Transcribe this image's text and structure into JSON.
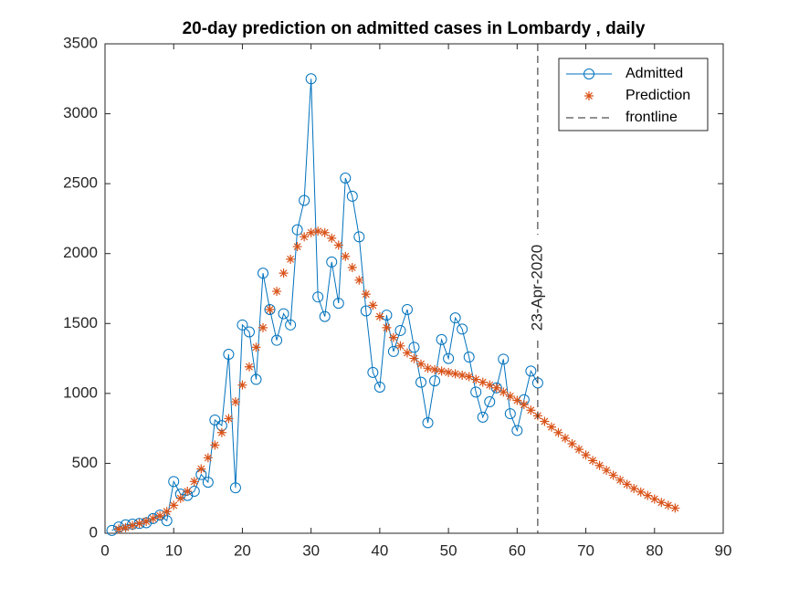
{
  "chart_data": {
    "type": "line",
    "title": "20-day prediction on admitted cases in Lombardy , daily",
    "xlim": [
      0,
      90
    ],
    "xticks": [
      0,
      10,
      20,
      30,
      40,
      50,
      60,
      70,
      80,
      90
    ],
    "ylim": [
      0,
      3500
    ],
    "yticks": [
      0,
      500,
      1000,
      1500,
      2000,
      2500,
      3000,
      3500
    ],
    "grid": false,
    "legend": "northeast",
    "series": [
      {
        "name": "Admitted",
        "color": "#0072BD",
        "marker": "o",
        "line": true,
        "x": [
          1,
          2,
          3,
          4,
          5,
          6,
          7,
          8,
          9,
          10,
          11,
          12,
          13,
          14,
          15,
          16,
          17,
          18,
          19,
          20,
          21,
          22,
          23,
          24,
          25,
          26,
          27,
          28,
          29,
          30,
          31,
          32,
          33,
          34,
          35,
          36,
          37,
          38,
          39,
          40,
          41,
          42,
          43,
          44,
          45,
          46,
          47,
          48,
          49,
          50,
          51,
          52,
          53,
          54,
          55,
          56,
          57,
          58,
          59,
          60,
          61,
          62,
          63
        ],
        "values": [
          20,
          45,
          60,
          65,
          70,
          75,
          105,
          130,
          90,
          370,
          280,
          270,
          300,
          420,
          365,
          810,
          770,
          1280,
          325,
          1490,
          1440,
          1100,
          1860,
          1600,
          1380,
          1570,
          1490,
          2170,
          2380,
          3250,
          1690,
          1550,
          1940,
          1645,
          2540,
          2410,
          2120,
          1590,
          1150,
          1045,
          1560,
          1300,
          1450,
          1600,
          1330,
          1080,
          790,
          1090,
          1385,
          1250,
          1540,
          1460,
          1260,
          1010,
          830,
          940,
          1040,
          1245,
          855,
          735,
          955,
          1160,
          1075
        ]
      },
      {
        "name": "Prediction",
        "color": "#D95319",
        "marker": "*",
        "line": false,
        "x": [
          2,
          3,
          4,
          5,
          6,
          7,
          8,
          9,
          10,
          11,
          12,
          13,
          14,
          15,
          16,
          17,
          18,
          19,
          20,
          21,
          22,
          23,
          24,
          25,
          26,
          27,
          28,
          29,
          30,
          31,
          32,
          33,
          34,
          35,
          36,
          37,
          38,
          39,
          40,
          41,
          42,
          43,
          44,
          45,
          46,
          47,
          48,
          49,
          50,
          51,
          52,
          53,
          54,
          55,
          56,
          57,
          58,
          59,
          60,
          61,
          62,
          63,
          64,
          65,
          66,
          67,
          68,
          69,
          70,
          71,
          72,
          73,
          74,
          75,
          76,
          77,
          78,
          79,
          80,
          81,
          82,
          83
        ],
        "values": [
          30,
          40,
          55,
          70,
          85,
          105,
          125,
          155,
          200,
          250,
          300,
          370,
          460,
          540,
          630,
          720,
          820,
          940,
          1060,
          1190,
          1330,
          1470,
          1600,
          1730,
          1860,
          1960,
          2050,
          2120,
          2150,
          2160,
          2150,
          2110,
          2060,
          1980,
          1900,
          1810,
          1710,
          1630,
          1550,
          1470,
          1400,
          1340,
          1290,
          1250,
          1210,
          1180,
          1170,
          1160,
          1150,
          1140,
          1130,
          1120,
          1100,
          1080,
          1060,
          1040,
          1010,
          980,
          950,
          920,
          880,
          840,
          800,
          760,
          720,
          680,
          640,
          600,
          560,
          520,
          485,
          450,
          415,
          380,
          350,
          320,
          295,
          270,
          245,
          220,
          200,
          180
        ]
      }
    ],
    "vlines": [
      {
        "name": "frontline",
        "x": 63,
        "label": "23-Apr-2020",
        "color": "#262626"
      }
    ]
  }
}
